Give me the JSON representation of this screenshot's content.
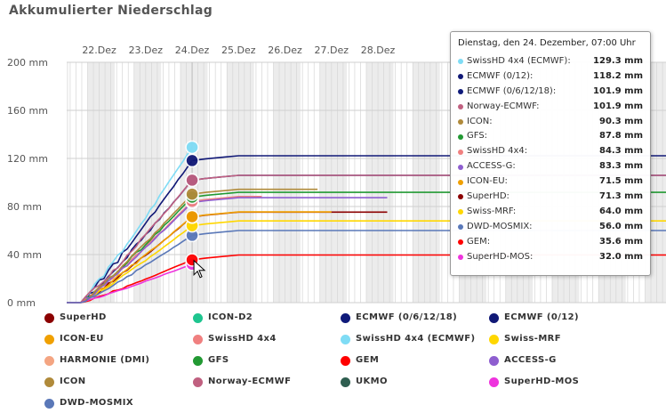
{
  "chart_data": {
    "type": "line",
    "title": "Akkumulierter Niederschlag",
    "ylim": [
      0,
      200
    ],
    "yticks": [
      "0 mm",
      "40 mm",
      "80 mm",
      "120 mm",
      "160 mm",
      "200 mm"
    ],
    "ytick_values": [
      0,
      40,
      80,
      120,
      160,
      200
    ],
    "x_tick_labels": [
      "22.Dez",
      "23.Dez",
      "24.Dez",
      "25.Dez",
      "26.Dez",
      "27.Dez",
      "28.Dez"
    ],
    "x_range_days": [
      21.3,
      34.2
    ],
    "hover_day": 24.0,
    "series": [
      {
        "name": "SuperHD",
        "color": "#8b0000",
        "end": 71.3,
        "until": 28.2
      },
      {
        "name": "ICON-D2",
        "color": "#1ec58f",
        "end": 0,
        "until": 22.0
      },
      {
        "name": "ECMWF (0/6/12/18)",
        "color": "#0f1a7a",
        "end": 101.9,
        "until": 34.2
      },
      {
        "name": "ECMWF (0/12)",
        "color": "#101876",
        "end": 118.2,
        "until": 34.2
      },
      {
        "name": "ICON-EU",
        "color": "#f0a000",
        "end": 71.5,
        "until": 27.0
      },
      {
        "name": "SwissHD 4x4",
        "color": "#f08080",
        "end": 84.3,
        "until": 25.5
      },
      {
        "name": "SwissHD 4x4 (ECMWF)",
        "color": "#7fdcf5",
        "end": 129.3,
        "until": 24.0
      },
      {
        "name": "Swiss-MRF",
        "color": "#ffd700",
        "end": 64.0,
        "until": 34.2
      },
      {
        "name": "HARMONIE (DMI)",
        "color": "#f4a582",
        "end": 0,
        "until": 22.0
      },
      {
        "name": "GFS",
        "color": "#229933",
        "end": 87.8,
        "until": 34.2
      },
      {
        "name": "GEM",
        "color": "#ff0000",
        "end": 35.6,
        "until": 34.2
      },
      {
        "name": "ACCESS-G",
        "color": "#8e5ecf",
        "end": 83.3,
        "until": 28.2
      },
      {
        "name": "ICON",
        "color": "#b08a3a",
        "end": 90.3,
        "until": 26.7
      },
      {
        "name": "Norway-ECMWF",
        "color": "#c06080",
        "end": 101.9,
        "until": 34.2
      },
      {
        "name": "UKMO",
        "color": "#2f5e50",
        "end": 0,
        "until": 22.0
      },
      {
        "name": "SuperHD-MOS",
        "color": "#ee33dd",
        "end": 32.0,
        "until": 24.0
      },
      {
        "name": "DWD-MOSMIX",
        "color": "#5a78b8",
        "end": 56.0,
        "until": 34.2
      }
    ]
  },
  "tooltip": {
    "title": "Dienstag, den 24. Dezember, 07:00 Uhr",
    "rows": [
      {
        "name": "SwissHD 4x4 (ECMWF):",
        "value": "129.3 mm",
        "color": "#7fdcf5"
      },
      {
        "name": "ECMWF (0/12):",
        "value": "118.2 mm",
        "color": "#101876"
      },
      {
        "name": "ECMWF (0/6/12/18):",
        "value": "101.9 mm",
        "color": "#0f1a7a"
      },
      {
        "name": "Norway-ECMWF:",
        "value": "101.9 mm",
        "color": "#c06080"
      },
      {
        "name": "ICON:",
        "value": "90.3 mm",
        "color": "#b08a3a"
      },
      {
        "name": "GFS:",
        "value": "87.8 mm",
        "color": "#229933"
      },
      {
        "name": "SwissHD 4x4:",
        "value": "84.3 mm",
        "color": "#f08080"
      },
      {
        "name": "ACCESS-G:",
        "value": "83.3 mm",
        "color": "#8e5ecf"
      },
      {
        "name": "ICON-EU:",
        "value": "71.5 mm",
        "color": "#f0a000"
      },
      {
        "name": "SuperHD:",
        "value": "71.3 mm",
        "color": "#8b0000"
      },
      {
        "name": "Swiss-MRF:",
        "value": "64.0 mm",
        "color": "#ffd700"
      },
      {
        "name": "DWD-MOSMIX:",
        "value": "56.0 mm",
        "color": "#5a78b8"
      },
      {
        "name": "GEM:",
        "value": "35.6 mm",
        "color": "#ff0000"
      },
      {
        "name": "SuperHD-MOS:",
        "value": "32.0 mm",
        "color": "#ee33dd"
      }
    ]
  },
  "legend": [
    {
      "name": "SuperHD",
      "color": "#8b0000"
    },
    {
      "name": "ICON-D2",
      "color": "#1ec58f"
    },
    {
      "name": "ECMWF (0/6/12/18)",
      "color": "#0f1a7a"
    },
    {
      "name": "ECMWF (0/12)",
      "color": "#101876"
    },
    {
      "name": "ICON-EU",
      "color": "#f0a000"
    },
    {
      "name": "SwissHD 4x4",
      "color": "#f08080"
    },
    {
      "name": "SwissHD 4x4 (ECMWF)",
      "color": "#7fdcf5"
    },
    {
      "name": "Swiss-MRF",
      "color": "#ffd700"
    },
    {
      "name": "HARMONIE (DMI)",
      "color": "#f4a582"
    },
    {
      "name": "GFS",
      "color": "#229933"
    },
    {
      "name": "GEM",
      "color": "#ff0000"
    },
    {
      "name": "ACCESS-G",
      "color": "#8e5ecf"
    },
    {
      "name": "ICON",
      "color": "#b08a3a"
    },
    {
      "name": "Norway-ECMWF",
      "color": "#c06080"
    },
    {
      "name": "UKMO",
      "color": "#2f5e50"
    },
    {
      "name": "SuperHD-MOS",
      "color": "#ee33dd"
    },
    {
      "name": "DWD-MOSMIX",
      "color": "#5a78b8"
    }
  ]
}
